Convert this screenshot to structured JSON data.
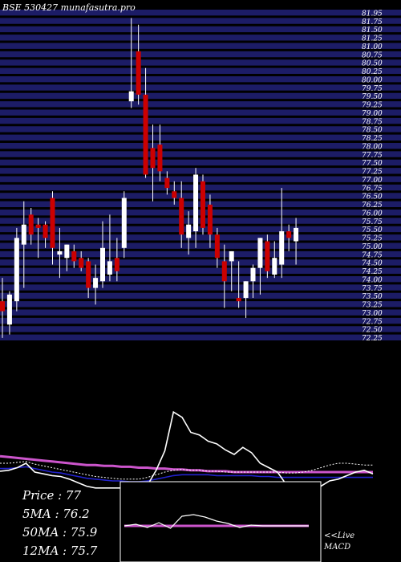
{
  "title": "BSE 530427 munafasutra.pro",
  "colors": {
    "background": "#000000",
    "grid_band": "#1c1c66",
    "up_candle": "#ffffff",
    "down_candle": "#cc0000",
    "wick": "#ffffff",
    "ma_pink": "#cc55cc",
    "ma_blue": "#2222cc",
    "ma_white": "#ffffff",
    "indicator_line": "#ffffff",
    "macd_pink": "#cc55cc"
  },
  "stats": {
    "price": "Price   : 77",
    "ma5": "5MA : 76.2",
    "ma50": "50MA : 75.9",
    "ma12": "12MA : 75.7"
  },
  "live_label": "<<Live",
  "macd_label": "MACD",
  "chart_data": [
    {
      "type": "candlestick",
      "title": "BSE 530427 munafasutra.pro",
      "ylim": [
        72,
        82
      ],
      "yticks": [
        81.95,
        81.75,
        81.5,
        81.25,
        81.0,
        80.75,
        80.5,
        80.25,
        80.0,
        79.75,
        79.5,
        79.25,
        79.0,
        78.75,
        78.5,
        78.25,
        78.0,
        77.75,
        77.5,
        77.25,
        77.0,
        76.75,
        76.5,
        76.25,
        76.0,
        75.75,
        75.5,
        75.25,
        75.0,
        74.75,
        74.5,
        74.25,
        74.0,
        73.75,
        73.5,
        73.25,
        73.0,
        72.75,
        72.5,
        72.25
      ],
      "candles": [
        {
          "open": 73.2,
          "high": 73.9,
          "low": 72.1,
          "close": 72.9
        },
        {
          "open": 72.5,
          "high": 73.5,
          "low": 72.2,
          "close": 73.4
        },
        {
          "open": 73.2,
          "high": 75.4,
          "low": 72.9,
          "close": 75.1
        },
        {
          "open": 74.9,
          "high": 76.2,
          "low": 73.6,
          "close": 75.5
        },
        {
          "open": 75.8,
          "high": 76.0,
          "low": 74.9,
          "close": 75.2
        },
        {
          "open": 75.5,
          "high": 75.7,
          "low": 74.5,
          "close": 75.4
        },
        {
          "open": 75.5,
          "high": 75.6,
          "low": 74.8,
          "close": 75.1
        },
        {
          "open": 76.3,
          "high": 76.5,
          "low": 74.3,
          "close": 74.8
        },
        {
          "open": 74.6,
          "high": 75.4,
          "low": 73.9,
          "close": 74.7
        },
        {
          "open": 74.5,
          "high": 74.9,
          "low": 74.1,
          "close": 74.9
        },
        {
          "open": 74.7,
          "high": 74.9,
          "low": 74.2,
          "close": 74.4
        },
        {
          "open": 74.5,
          "high": 74.7,
          "low": 74.1,
          "close": 74.2
        },
        {
          "open": 74.4,
          "high": 74.5,
          "low": 73.3,
          "close": 73.6
        },
        {
          "open": 73.6,
          "high": 74.3,
          "low": 73.1,
          "close": 73.9
        },
        {
          "open": 73.8,
          "high": 75.6,
          "low": 73.6,
          "close": 74.8
        },
        {
          "open": 74.0,
          "high": 75.8,
          "low": 73.8,
          "close": 74.4
        },
        {
          "open": 74.5,
          "high": 75.1,
          "low": 73.8,
          "close": 74.1
        },
        {
          "open": 74.8,
          "high": 76.5,
          "low": 74.5,
          "close": 76.3
        },
        {
          "open": 79.2,
          "high": 81.7,
          "low": 79.0,
          "close": 79.5
        },
        {
          "open": 80.7,
          "high": 81.5,
          "low": 79.1,
          "close": 79.4
        },
        {
          "open": 79.4,
          "high": 80.2,
          "low": 76.9,
          "close": 77.0
        },
        {
          "open": 77.8,
          "high": 78.5,
          "low": 76.2,
          "close": 77.2
        },
        {
          "open": 77.9,
          "high": 78.5,
          "low": 76.8,
          "close": 77.1
        },
        {
          "open": 76.9,
          "high": 77.1,
          "low": 76.4,
          "close": 76.6
        },
        {
          "open": 76.5,
          "high": 76.8,
          "low": 76.1,
          "close": 76.3
        },
        {
          "open": 76.3,
          "high": 76.8,
          "low": 74.8,
          "close": 75.2
        },
        {
          "open": 75.1,
          "high": 75.9,
          "low": 74.6,
          "close": 75.5
        },
        {
          "open": 75.3,
          "high": 77.2,
          "low": 74.8,
          "close": 77.0
        },
        {
          "open": 76.8,
          "high": 77.0,
          "low": 75.2,
          "close": 75.4
        },
        {
          "open": 76.1,
          "high": 76.4,
          "low": 74.8,
          "close": 75.2
        },
        {
          "open": 75.2,
          "high": 75.4,
          "low": 74.2,
          "close": 74.5
        },
        {
          "open": 74.4,
          "high": 74.9,
          "low": 73.0,
          "close": 73.8
        },
        {
          "open": 74.4,
          "high": 74.7,
          "low": 73.5,
          "close": 74.7
        },
        {
          "open": 73.3,
          "high": 74.4,
          "low": 73.0,
          "close": 73.2
        },
        {
          "open": 73.3,
          "high": 73.8,
          "low": 72.7,
          "close": 73.8
        },
        {
          "open": 73.8,
          "high": 74.3,
          "low": 73.3,
          "close": 74.2
        },
        {
          "open": 74.2,
          "high": 75.1,
          "low": 73.4,
          "close": 75.1
        },
        {
          "open": 75.0,
          "high": 75.2,
          "low": 73.9,
          "close": 74.1
        },
        {
          "open": 74.0,
          "high": 75.0,
          "low": 73.9,
          "close": 74.5
        },
        {
          "open": 74.3,
          "high": 76.6,
          "low": 73.9,
          "close": 75.3
        },
        {
          "open": 75.3,
          "high": 75.5,
          "low": 74.7,
          "close": 75.1
        },
        {
          "open": 75.0,
          "high": 75.7,
          "low": 74.3,
          "close": 75.4
        }
      ]
    },
    {
      "type": "line",
      "title": "",
      "series": [
        {
          "values": [
            21,
            22,
            25,
            30,
            20,
            18,
            16,
            15,
            12,
            8,
            4,
            2,
            2,
            2,
            2,
            2,
            2,
            5,
            22,
            44,
            88,
            82,
            65,
            62,
            55,
            52,
            45,
            40,
            48,
            42,
            30,
            25,
            20,
            6,
            4,
            4,
            3,
            4,
            10,
            12,
            16,
            20,
            22,
            18
          ]
        },
        {
          "values": [
            38,
            37,
            36,
            35,
            34,
            33,
            32,
            31,
            30,
            29,
            28,
            28,
            27,
            27,
            26,
            26,
            25,
            25,
            24,
            24,
            23,
            23,
            22,
            22,
            21,
            21,
            21,
            20,
            20,
            20,
            20,
            20,
            20,
            20,
            20,
            20,
            20,
            20,
            20,
            20,
            20,
            20,
            20,
            20
          ]
        },
        {
          "values": [
            24,
            24,
            25,
            26,
            24,
            22,
            20,
            19,
            17,
            15,
            13,
            12,
            11,
            10,
            10,
            9,
            9,
            10,
            12,
            14,
            16,
            17,
            17,
            17,
            17,
            16,
            16,
            16,
            16,
            16,
            15,
            15,
            14,
            14,
            14,
            14,
            14,
            14,
            14,
            14,
            14,
            14,
            14,
            14
          ]
        },
        {
          "values": [
            30,
            30,
            31,
            32,
            29,
            27,
            25,
            23,
            21,
            19,
            17,
            15,
            14,
            13,
            12,
            12,
            12,
            14,
            17,
            20,
            22,
            23,
            22,
            22,
            21,
            21,
            20,
            20,
            20,
            20,
            20,
            20,
            20,
            19,
            19,
            20,
            22,
            25,
            28,
            30,
            30,
            29,
            28,
            28
          ]
        }
      ]
    },
    {
      "type": "line",
      "title": "MACD",
      "series": [
        {
          "values": [
            0,
            0.1,
            -0.1,
            0.2,
            -0.15,
            0.6,
            0.7,
            0.55,
            0.3,
            0.15,
            -0.1,
            0.05,
            0.0,
            0.0,
            0.0,
            0.0,
            0.0
          ]
        },
        {
          "values": [
            0,
            0,
            0,
            0,
            0,
            0,
            0,
            0,
            0,
            0,
            0,
            0,
            0,
            0,
            0,
            0,
            0
          ]
        }
      ]
    }
  ]
}
